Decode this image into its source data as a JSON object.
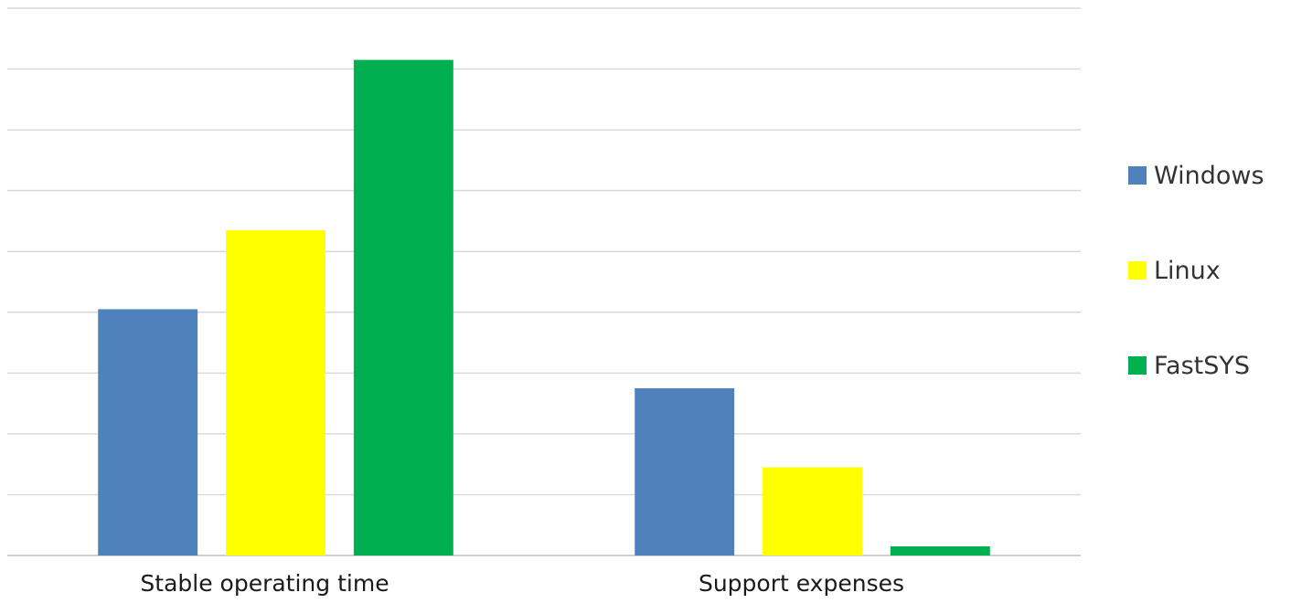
{
  "chart_data": {
    "type": "bar",
    "categories": [
      "Stable operating time",
      "Support expenses"
    ],
    "series": [
      {
        "name": "Windows",
        "color": "#4f81bd",
        "values": [
          4.05,
          2.75
        ]
      },
      {
        "name": "Linux",
        "color": "#ffff00",
        "values": [
          5.35,
          1.45
        ]
      },
      {
        "name": "FastSYS",
        "color": "#00b050",
        "values": [
          8.15,
          0.15
        ]
      }
    ],
    "ylim": [
      0,
      9
    ],
    "grid": true,
    "legend_position": "right",
    "title": "",
    "xlabel": "",
    "ylabel": ""
  }
}
